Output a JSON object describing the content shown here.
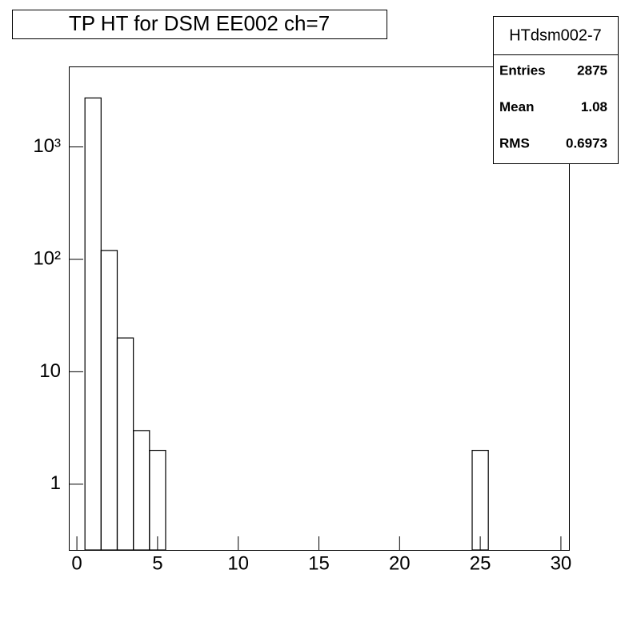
{
  "chart_data": {
    "type": "histogram",
    "title": "TP HT for DSM EE002 ch=7",
    "bins": [
      -0.5,
      0.5,
      1.5,
      2.5,
      3.5,
      4.5,
      5.5,
      6.5,
      7.5,
      8.5,
      9.5,
      10.5,
      11.5,
      12.5,
      13.5,
      14.5,
      15.5,
      16.5,
      17.5,
      18.5,
      19.5,
      20.5,
      21.5,
      22.5,
      23.5,
      24.5,
      25.5,
      26.5,
      27.5,
      28.5,
      29.5,
      30.5
    ],
    "values": [
      0,
      2728,
      120,
      20,
      3,
      2,
      0,
      0,
      0,
      0,
      0,
      0,
      0,
      0,
      0,
      0,
      0,
      0,
      0,
      0,
      0,
      0,
      0,
      0,
      0,
      2,
      0,
      0,
      0,
      0,
      0
    ],
    "color": "#000000",
    "xlim": [
      -0.5,
      30.5
    ],
    "xticks": [
      0,
      5,
      10,
      15,
      20,
      25,
      30
    ],
    "ylim": [
      0.26,
      5200
    ],
    "log_y": true,
    "yticks": [
      1,
      10,
      {
        "value": 100,
        "label": "10²"
      },
      {
        "value": 1000,
        "label": "10³"
      }
    ],
    "stats": {
      "name": "HTdsm002-7",
      "rows": [
        [
          "Entries",
          "2875"
        ],
        [
          "Mean",
          "1.08"
        ],
        [
          "RMS",
          "0.6973"
        ]
      ]
    }
  }
}
